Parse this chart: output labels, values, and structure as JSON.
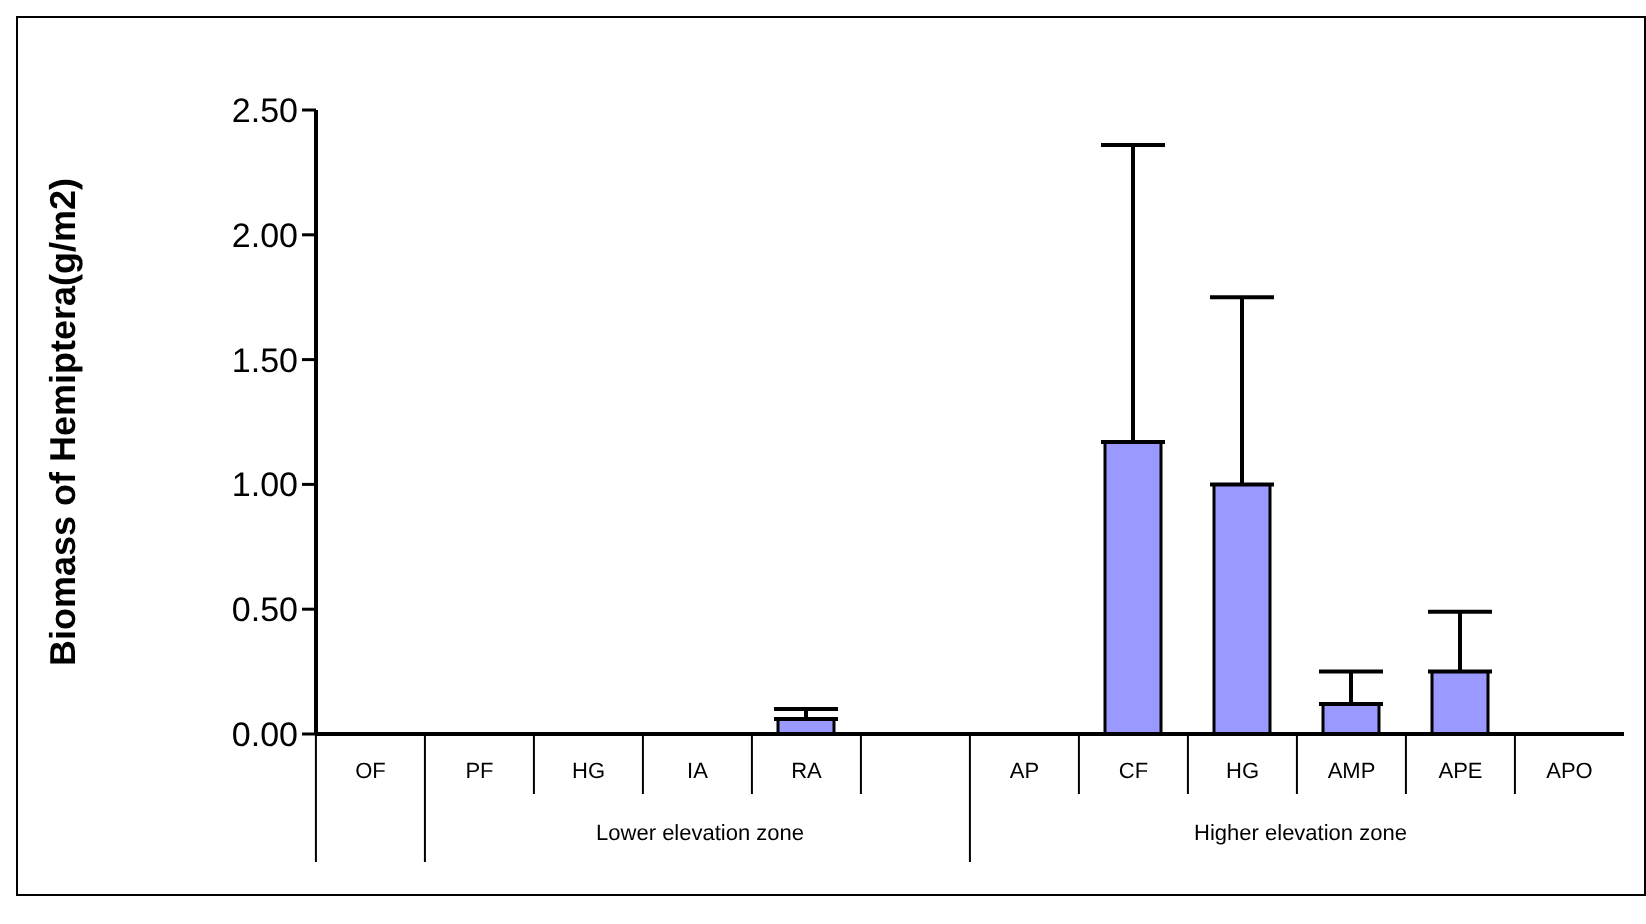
{
  "chart_data": {
    "type": "bar",
    "ylabel": "Biomass of Hemiptera(g/m2)",
    "categories": [
      "OF",
      "PF",
      "HG",
      "IA",
      "RA",
      null,
      "AP",
      "CF",
      "HG",
      "AMP",
      "APE",
      "APO"
    ],
    "values": [
      0,
      0,
      0,
      0,
      0.06,
      null,
      0,
      1.17,
      1.0,
      0.12,
      0.25,
      0
    ],
    "errors": [
      null,
      null,
      null,
      null,
      [
        0.06,
        0.1
      ],
      null,
      null,
      [
        1.17,
        2.36
      ],
      [
        1.0,
        1.75
      ],
      [
        0.12,
        0.25
      ],
      [
        0.25,
        0.49
      ],
      null
    ],
    "color": "#9999ff",
    "ylim": [
      0,
      2.5
    ],
    "yticks": [
      {
        "value": 0,
        "label": "0.00"
      },
      {
        "value": 0.5,
        "label": "0.50"
      },
      {
        "value": 1,
        "label": "1.00"
      },
      {
        "value": 1.5,
        "label": "1.50"
      },
      {
        "value": 2,
        "label": "2.00"
      },
      {
        "value": 2.5,
        "label": "2.50"
      }
    ],
    "annotations": [
      "Lower elevation zone",
      "Higher elevation zone"
    ],
    "grid": false,
    "legend": false
  }
}
